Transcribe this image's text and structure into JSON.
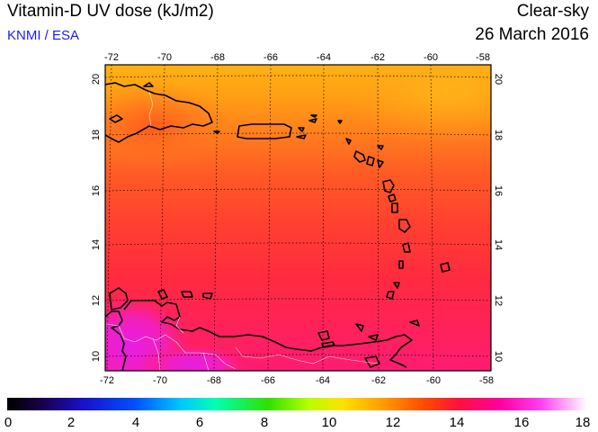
{
  "header": {
    "title": "Vitamin-D UV dose (kJ/m2)",
    "source": "KNMI / ESA",
    "sky_condition": "Clear-sky",
    "date": "26 March 2016"
  },
  "map": {
    "lon_range": [
      -72.2,
      -58.0
    ],
    "lat_range": [
      9.5,
      20.4
    ],
    "top_lon_ticks": [
      "-72",
      "-70",
      "-68",
      "-66",
      "-64",
      "-62",
      "-60",
      "-58"
    ],
    "bottom_lon_ticks": [
      "-72",
      "-70",
      "-68",
      "-66",
      "-64",
      "-62",
      "-60",
      "-58"
    ],
    "left_lat_ticks": [
      "20",
      "18",
      "16",
      "14",
      "12",
      "10"
    ],
    "right_lat_ticks": [
      "20",
      "18",
      "16",
      "14",
      "12",
      "10"
    ],
    "colors": {
      "north": "#ffa814",
      "mid": "#ff4a2e",
      "south": "#ff1f6a",
      "venezuela_high": "#f21fd8",
      "coast": "#000000",
      "border": "#ffffff"
    }
  },
  "colorbar": {
    "min": 0,
    "max": 18,
    "labels": [
      "0",
      "2",
      "4",
      "6",
      "8",
      "10",
      "12",
      "14",
      "16",
      "18"
    ]
  }
}
